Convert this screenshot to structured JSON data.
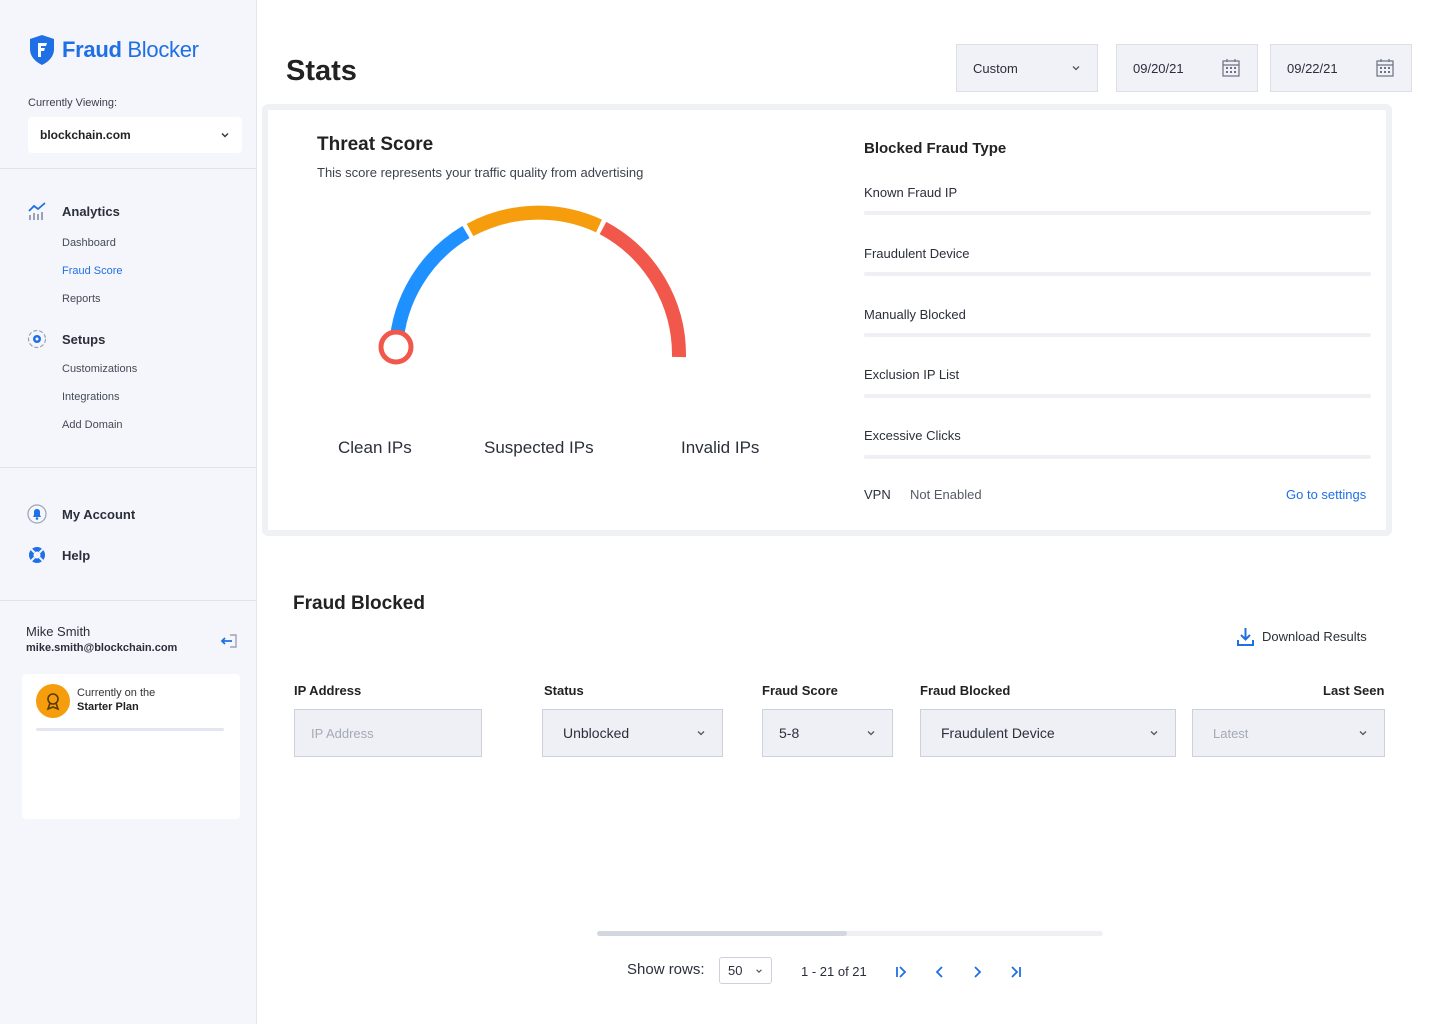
{
  "brand": {
    "name_bold": "Fraud",
    "name_rest": " Blocker",
    "accent": "#1f6fe5"
  },
  "sidebar": {
    "currently_viewing_label": "Currently Viewing:",
    "domain": "blockchain.com",
    "sections": [
      {
        "label": "Analytics",
        "icon": "analytics-chart-icon",
        "items": [
          "Dashboard",
          "Fraud Score",
          "Reports"
        ],
        "active": "Fraud Score"
      },
      {
        "label": "Setups",
        "icon": "setup-gear-icon",
        "items": [
          "Customizations",
          "Integrations",
          "Add Domain"
        ]
      }
    ],
    "account_label": "My Account",
    "help_label": "Help",
    "user": {
      "name": "Mike Smith",
      "email": "mike.smith@blockchain.com"
    },
    "plan": {
      "line1": "Currently on the",
      "line2": "Starter Plan"
    }
  },
  "header": {
    "title": "Stats",
    "range_select": "Custom",
    "date_from": "09/20/21",
    "date_to": "09/22/21"
  },
  "threat_score": {
    "title": "Threat Score",
    "description": "This score represents your traffic quality from advertising",
    "labels": [
      "Clean IPs",
      "Suspected IPs",
      "Invalid IPs"
    ],
    "colors": {
      "clean": "#1e90ff",
      "suspected": "#f59d0c",
      "invalid": "#f2574c"
    }
  },
  "blocked_fraud_type": {
    "title": "Blocked Fraud Type",
    "items": [
      "Known Fraud IP",
      "Fraudulent Device",
      "Manually Blocked",
      "Exclusion IP List",
      "Excessive Clicks"
    ],
    "vpn_label": "VPN",
    "vpn_status": "Not Enabled",
    "vpn_link": "Go to settings"
  },
  "fraud_blocked": {
    "title": "Fraud Blocked",
    "download_label": "Download Results",
    "filters": {
      "ip_label": "IP Address",
      "ip_placeholder": "IP Address",
      "status_label": "Status",
      "status_value": "Unblocked",
      "score_label": "Fraud Score",
      "score_value": "5-8",
      "blocked_label": "Fraud Blocked",
      "blocked_value": "Fraudulent Device",
      "seen_label": "Last Seen",
      "seen_placeholder": "Latest"
    }
  },
  "pagination": {
    "show_rows_label": "Show rows:",
    "rows_value": "50",
    "range": "1 - 21 of 21"
  }
}
